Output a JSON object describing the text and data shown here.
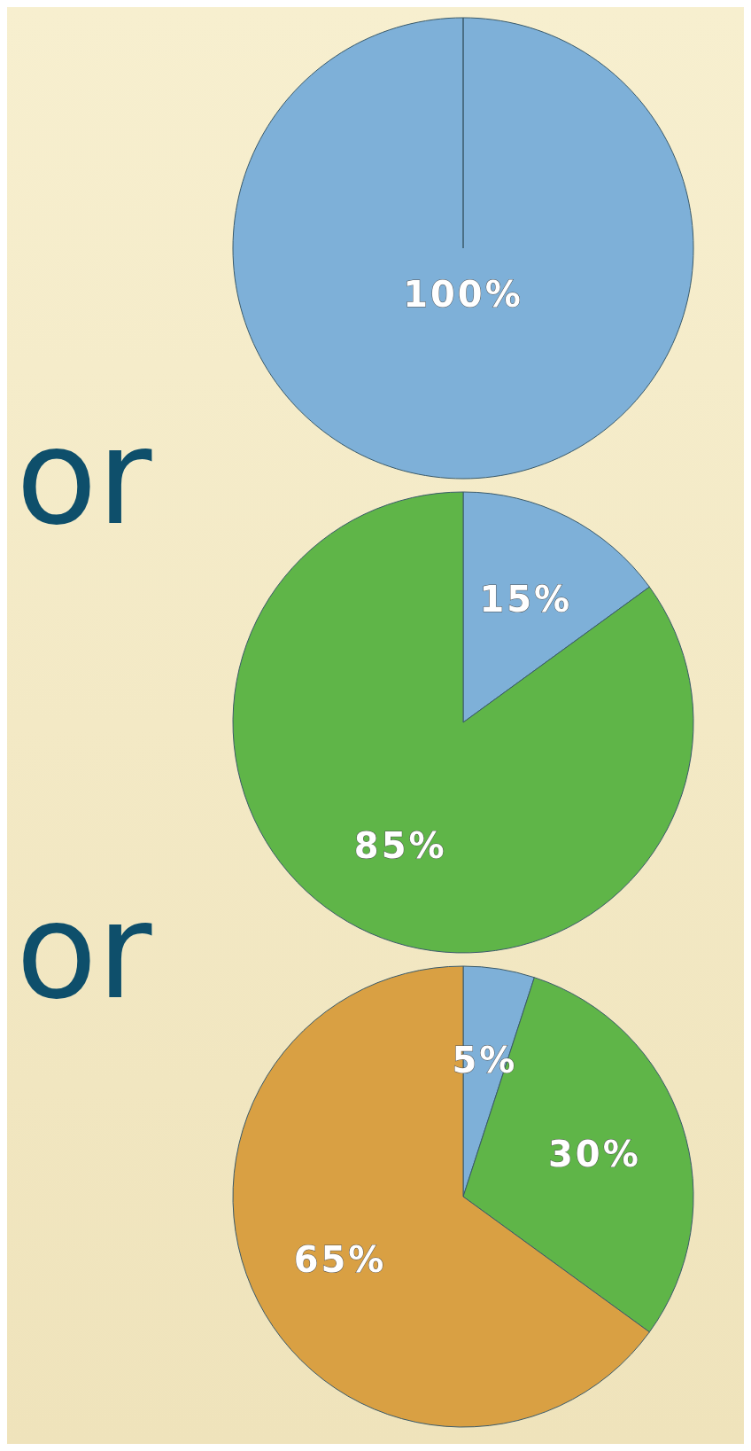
{
  "chart_data": [
    {
      "type": "pie",
      "categories": [
        null
      ],
      "values": [
        100
      ],
      "colors": [
        "#7eb0d8"
      ],
      "value_labels": [
        "100%"
      ],
      "annotations": [
        "or"
      ]
    },
    {
      "type": "pie",
      "categories": [
        null,
        null
      ],
      "values": [
        15,
        85
      ],
      "colors": [
        "#7eb0d8",
        "#5fb548"
      ],
      "value_labels": [
        "15%",
        "85%"
      ],
      "annotations": [
        "or"
      ]
    },
    {
      "type": "pie",
      "categories": [
        null,
        null,
        null
      ],
      "values": [
        5,
        30,
        65
      ],
      "colors": [
        "#7eb0d8",
        "#5fb548",
        "#d9a043"
      ],
      "value_labels": [
        "5%",
        "30%",
        "65%"
      ]
    }
  ]
}
